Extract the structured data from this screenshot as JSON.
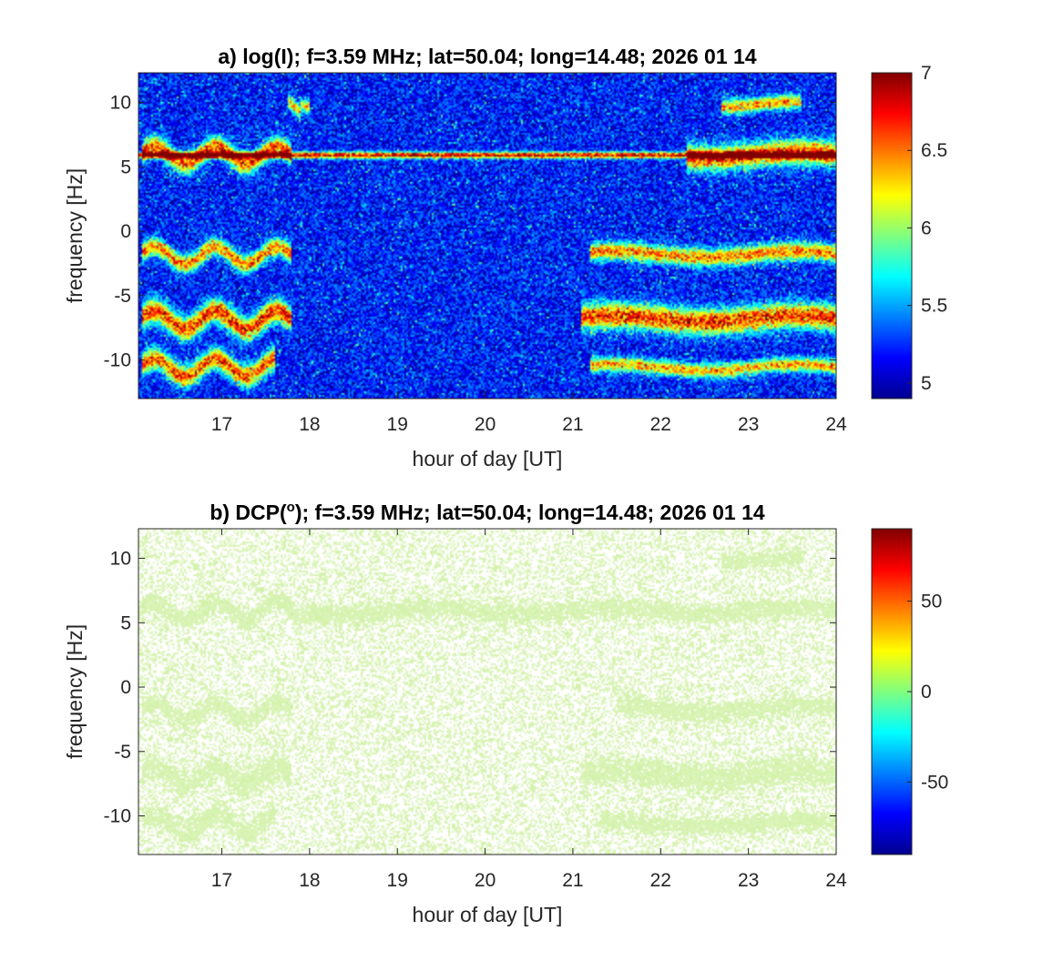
{
  "chart_data": [
    {
      "type": "heatmap",
      "title": "a) log(I); f=3.59 MHz;  lat=50.04; long=14.48; 2026 01 14",
      "xlabel": "hour of day [UT]",
      "ylabel": "frequency [Hz]",
      "xlim": [
        16.05,
        24
      ],
      "ylim": [
        -13,
        12.3
      ],
      "xticks": [
        17,
        18,
        19,
        20,
        21,
        22,
        23,
        24
      ],
      "yticks": [
        -10,
        -5,
        0,
        5,
        10
      ],
      "colorbar": {
        "range": [
          4.9,
          7.0
        ],
        "ticks": [
          5,
          5.5,
          6,
          6.5,
          7
        ],
        "colormap": "jet"
      },
      "background_value": 5.2,
      "features": [
        {
          "name": "steady line",
          "freq": 5.9,
          "from": 16.05,
          "to": 24,
          "value": 6.9,
          "width": 0.35
        },
        {
          "name": "band",
          "freq": 5.9,
          "from": 16.1,
          "to": 17.8,
          "value": 6.6,
          "width": 1.1
        },
        {
          "name": "band",
          "freq": 5.9,
          "from": 22.3,
          "to": 24,
          "value": 6.6,
          "width": 1.4
        },
        {
          "name": "band",
          "freq": -1.9,
          "from": 16.1,
          "to": 17.8,
          "value": 6.5,
          "width": 1.0
        },
        {
          "name": "band",
          "freq": -1.8,
          "from": 21.2,
          "to": 24,
          "value": 6.5,
          "width": 1.0
        },
        {
          "name": "band",
          "freq": -6.9,
          "from": 16.1,
          "to": 17.8,
          "value": 6.7,
          "width": 1.3
        },
        {
          "name": "band",
          "freq": -6.8,
          "from": 21.1,
          "to": 24,
          "value": 6.7,
          "width": 1.4
        },
        {
          "name": "band",
          "freq": -10.6,
          "from": 16.1,
          "to": 17.6,
          "value": 6.6,
          "width": 1.2
        },
        {
          "name": "band",
          "freq": -10.6,
          "from": 21.2,
          "to": 24,
          "value": 6.4,
          "width": 0.8
        },
        {
          "name": "band",
          "freq": 9.8,
          "from": 22.7,
          "to": 23.6,
          "value": 6.4,
          "width": 0.8
        },
        {
          "name": "band",
          "freq": 9.8,
          "from": 17.75,
          "to": 18.0,
          "value": 6.3,
          "width": 0.8
        }
      ]
    },
    {
      "type": "heatmap",
      "title": "b) DCP(",
      "title_superscript": "o",
      "title_rest": "); f=3.59 MHz;  lat=50.04; long=14.48; 2026 01 14",
      "xlabel": "hour of day [UT]",
      "ylabel": "frequency [Hz]",
      "xlim": [
        16.05,
        24
      ],
      "ylim": [
        -13,
        12.3
      ],
      "xticks": [
        17,
        18,
        19,
        20,
        21,
        22,
        23,
        24
      ],
      "yticks": [
        -10,
        -5,
        0,
        5,
        10
      ],
      "colorbar": {
        "range": [
          -90,
          90
        ],
        "ticks": [
          -50,
          0,
          50
        ],
        "colormap": "jet"
      },
      "dominant_value": 20,
      "features": [
        {
          "name": "band",
          "freq": 5.9,
          "from": 16.05,
          "to": 24,
          "width": 1.0
        },
        {
          "name": "band",
          "freq": -1.9,
          "from": 16.1,
          "to": 17.8,
          "width": 1.0
        },
        {
          "name": "band",
          "freq": -1.7,
          "from": 21.5,
          "to": 24,
          "width": 1.0
        },
        {
          "name": "band",
          "freq": -6.9,
          "from": 16.1,
          "to": 17.8,
          "width": 1.3
        },
        {
          "name": "band",
          "freq": -6.8,
          "from": 21.1,
          "to": 24,
          "width": 1.4
        },
        {
          "name": "band",
          "freq": -10.6,
          "from": 16.1,
          "to": 17.6,
          "width": 1.2
        },
        {
          "name": "band",
          "freq": -10.6,
          "from": 21.3,
          "to": 24,
          "width": 0.9
        },
        {
          "name": "band",
          "freq": 9.8,
          "from": 22.7,
          "to": 23.6,
          "width": 0.8
        }
      ]
    }
  ]
}
